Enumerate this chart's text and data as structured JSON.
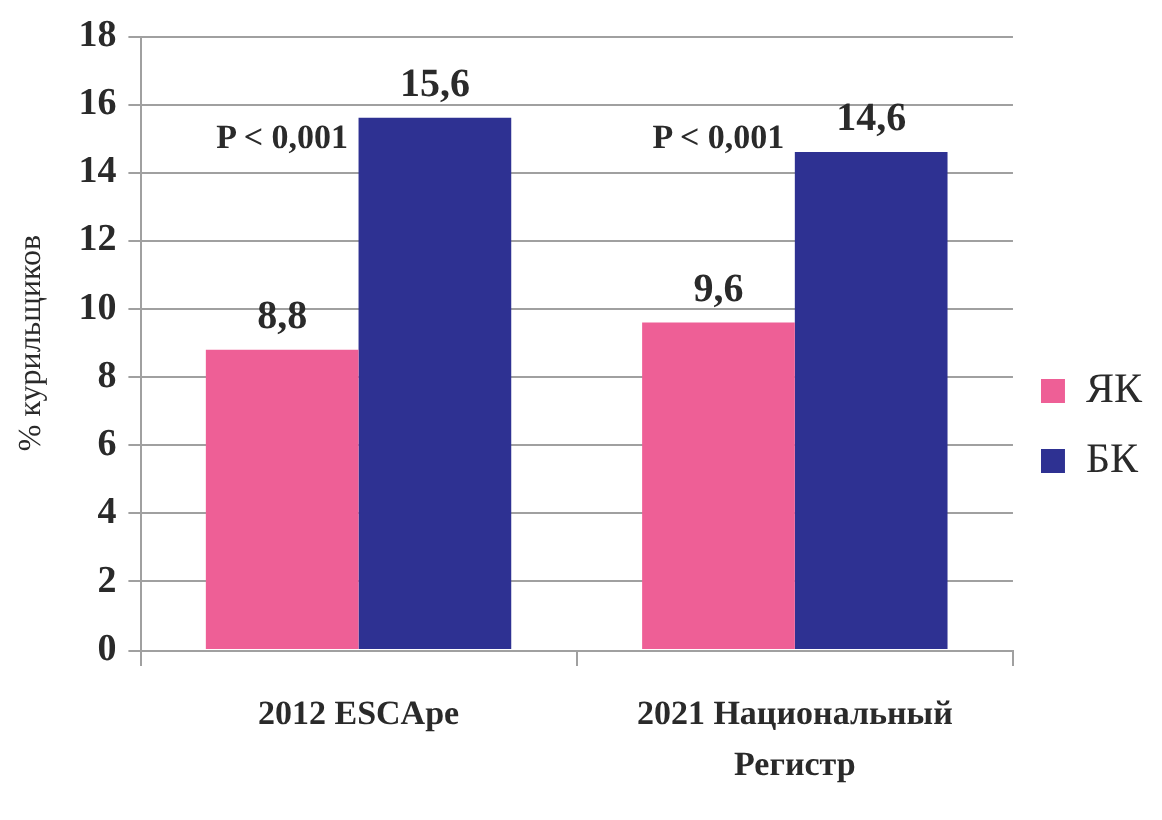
{
  "chart_data": {
    "type": "bar",
    "ylabel": "% курильщиков",
    "categories": [
      "2012 ESCApe",
      "2021 Национальный Регистр"
    ],
    "series": [
      {
        "name": "ЯК",
        "color": "#ee5f96",
        "values": [
          8.8,
          9.6
        ],
        "value_labels": [
          "8,8",
          "9,6"
        ]
      },
      {
        "name": "БК",
        "color": "#2e3192",
        "values": [
          15.6,
          14.6
        ],
        "value_labels": [
          "15,6",
          "14,6"
        ]
      }
    ],
    "ylim": [
      0,
      18
    ],
    "yticks": [
      0,
      2,
      4,
      6,
      8,
      10,
      12,
      14,
      16,
      18
    ],
    "grid": "y",
    "legend": "right",
    "annotations": [
      "P < 0,001",
      "P < 0,001"
    ]
  }
}
